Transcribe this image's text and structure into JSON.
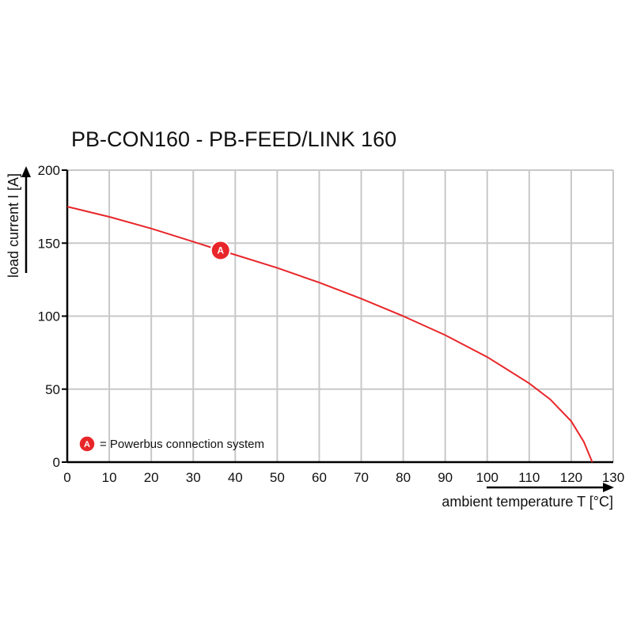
{
  "chart_data": {
    "type": "line",
    "title": "PB-CON160 - PB-FEED/LINK 160",
    "xlabel": "ambient temperature T [°C]",
    "ylabel": "load current I [A]",
    "xlim": [
      0,
      130
    ],
    "ylim": [
      0,
      200
    ],
    "x_ticks": [
      0,
      10,
      20,
      30,
      40,
      50,
      60,
      70,
      80,
      90,
      100,
      110,
      120,
      130
    ],
    "y_ticks": [
      0,
      50,
      100,
      150,
      200
    ],
    "grid": true,
    "series": [
      {
        "name": "A",
        "color": "#e8262a",
        "x": [
          0,
          10,
          20,
          30,
          36.5,
          40,
          50,
          60,
          70,
          80,
          90,
          100,
          110,
          115,
          120,
          123,
          125
        ],
        "y": [
          175,
          168,
          160,
          151,
          145,
          142,
          133,
          123,
          112,
          100,
          87,
          72,
          54,
          43,
          28,
          14,
          0
        ]
      }
    ],
    "marker": {
      "label": "A",
      "x": 36.5,
      "y": 145
    },
    "legend": {
      "marker": "A",
      "text": "= Powerbus connection system",
      "placement": "bottom-left"
    }
  }
}
